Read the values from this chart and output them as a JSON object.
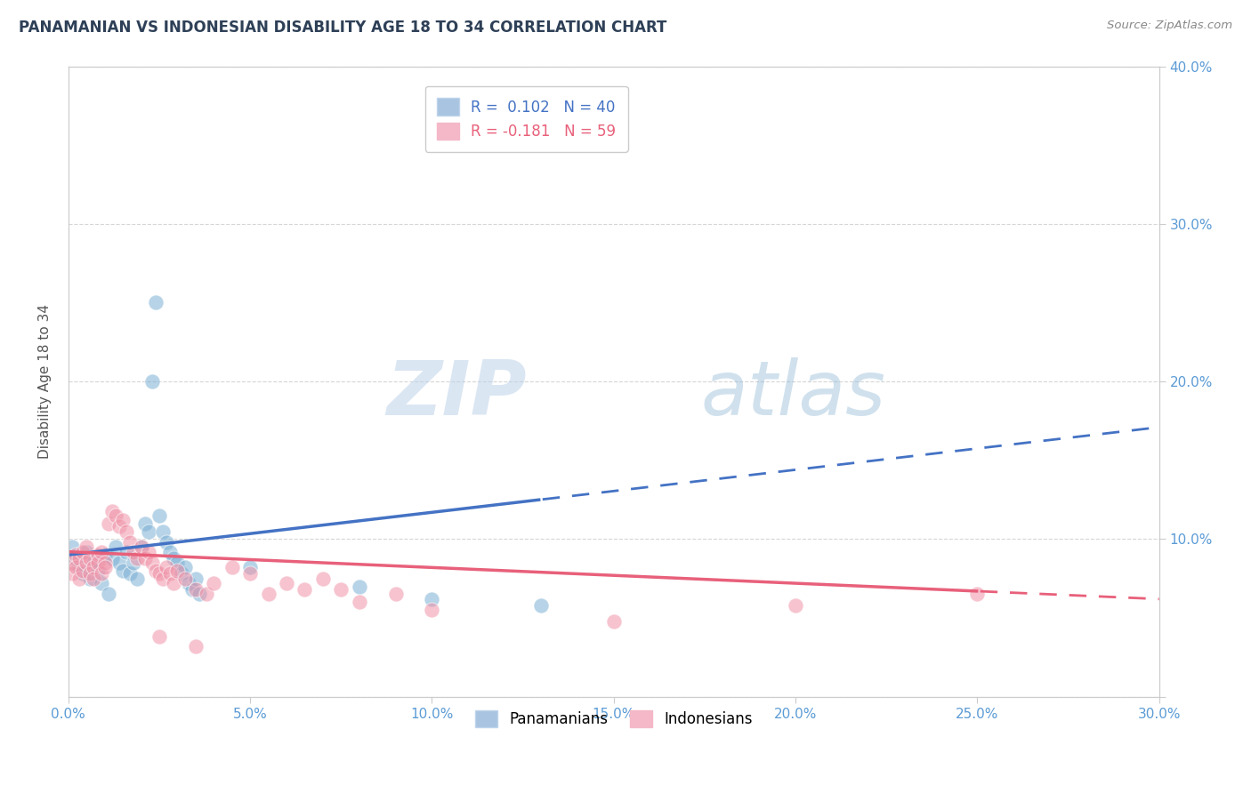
{
  "title": "PANAMANIAN VS INDONESIAN DISABILITY AGE 18 TO 34 CORRELATION CHART",
  "source_text": "Source: ZipAtlas.com",
  "ylabel": "Disability Age 18 to 34",
  "xlim": [
    0.0,
    0.3
  ],
  "ylim": [
    0.0,
    0.4
  ],
  "xticks": [
    0.0,
    0.05,
    0.1,
    0.15,
    0.2,
    0.25,
    0.3
  ],
  "yticks": [
    0.0,
    0.1,
    0.2,
    0.3,
    0.4
  ],
  "xtick_labels": [
    "0.0%",
    "5.0%",
    "10.0%",
    "15.0%",
    "20.0%",
    "25.0%",
    "30.0%"
  ],
  "ytick_labels_right": [
    "",
    "10.0%",
    "20.0%",
    "30.0%",
    "40.0%"
  ],
  "panamanian_color": "#7bafd4",
  "indonesian_color": "#f093a8",
  "trend_pan_color": "#4472c4",
  "trend_ind_color": "#e8607a",
  "background_color": "#ffffff",
  "grid_color": "#cccccc",
  "title_color": "#2e4057",
  "axis_label_color": "#555555",
  "tick_label_color": "#5b9bd5",
  "panamanian_data": [
    [
      0.001,
      0.095
    ],
    [
      0.002,
      0.088
    ],
    [
      0.003,
      0.082
    ],
    [
      0.004,
      0.078
    ],
    [
      0.005,
      0.092
    ],
    [
      0.006,
      0.075
    ],
    [
      0.007,
      0.085
    ],
    [
      0.008,
      0.08
    ],
    [
      0.009,
      0.072
    ],
    [
      0.01,
      0.09
    ],
    [
      0.011,
      0.065
    ],
    [
      0.012,
      0.088
    ],
    [
      0.013,
      0.095
    ],
    [
      0.014,
      0.085
    ],
    [
      0.015,
      0.08
    ],
    [
      0.016,
      0.092
    ],
    [
      0.017,
      0.078
    ],
    [
      0.018,
      0.085
    ],
    [
      0.019,
      0.075
    ],
    [
      0.02,
      0.095
    ],
    [
      0.021,
      0.11
    ],
    [
      0.022,
      0.105
    ],
    [
      0.023,
      0.2
    ],
    [
      0.024,
      0.25
    ],
    [
      0.025,
      0.115
    ],
    [
      0.026,
      0.105
    ],
    [
      0.027,
      0.098
    ],
    [
      0.028,
      0.092
    ],
    [
      0.029,
      0.088
    ],
    [
      0.03,
      0.085
    ],
    [
      0.031,
      0.078
    ],
    [
      0.032,
      0.082
    ],
    [
      0.033,
      0.072
    ],
    [
      0.034,
      0.068
    ],
    [
      0.035,
      0.075
    ],
    [
      0.036,
      0.065
    ],
    [
      0.05,
      0.082
    ],
    [
      0.08,
      0.07
    ],
    [
      0.1,
      0.062
    ],
    [
      0.13,
      0.058
    ]
  ],
  "indonesian_data": [
    [
      0.001,
      0.085
    ],
    [
      0.001,
      0.078
    ],
    [
      0.002,
      0.09
    ],
    [
      0.002,
      0.082
    ],
    [
      0.003,
      0.088
    ],
    [
      0.003,
      0.075
    ],
    [
      0.004,
      0.092
    ],
    [
      0.004,
      0.08
    ],
    [
      0.005,
      0.085
    ],
    [
      0.005,
      0.095
    ],
    [
      0.006,
      0.078
    ],
    [
      0.006,
      0.088
    ],
    [
      0.007,
      0.082
    ],
    [
      0.007,
      0.075
    ],
    [
      0.008,
      0.09
    ],
    [
      0.008,
      0.085
    ],
    [
      0.009,
      0.078
    ],
    [
      0.009,
      0.092
    ],
    [
      0.01,
      0.085
    ],
    [
      0.01,
      0.082
    ],
    [
      0.011,
      0.11
    ],
    [
      0.012,
      0.118
    ],
    [
      0.013,
      0.115
    ],
    [
      0.014,
      0.108
    ],
    [
      0.015,
      0.112
    ],
    [
      0.016,
      0.105
    ],
    [
      0.017,
      0.098
    ],
    [
      0.018,
      0.092
    ],
    [
      0.019,
      0.088
    ],
    [
      0.02,
      0.095
    ],
    [
      0.021,
      0.088
    ],
    [
      0.022,
      0.092
    ],
    [
      0.023,
      0.085
    ],
    [
      0.024,
      0.08
    ],
    [
      0.025,
      0.078
    ],
    [
      0.026,
      0.075
    ],
    [
      0.027,
      0.082
    ],
    [
      0.028,
      0.078
    ],
    [
      0.029,
      0.072
    ],
    [
      0.03,
      0.08
    ],
    [
      0.032,
      0.075
    ],
    [
      0.035,
      0.068
    ],
    [
      0.038,
      0.065
    ],
    [
      0.04,
      0.072
    ],
    [
      0.045,
      0.082
    ],
    [
      0.05,
      0.078
    ],
    [
      0.055,
      0.065
    ],
    [
      0.06,
      0.072
    ],
    [
      0.065,
      0.068
    ],
    [
      0.07,
      0.075
    ],
    [
      0.075,
      0.068
    ],
    [
      0.08,
      0.06
    ],
    [
      0.09,
      0.065
    ],
    [
      0.1,
      0.055
    ],
    [
      0.15,
      0.048
    ],
    [
      0.2,
      0.058
    ],
    [
      0.025,
      0.038
    ],
    [
      0.035,
      0.032
    ],
    [
      0.25,
      0.065
    ]
  ],
  "trend_pan_intercept": 0.09,
  "trend_pan_slope": 0.27,
  "trend_ind_intercept": 0.092,
  "trend_ind_slope": -0.1,
  "trend_pan_solid_end": 0.13,
  "trend_ind_solid_end": 0.25
}
